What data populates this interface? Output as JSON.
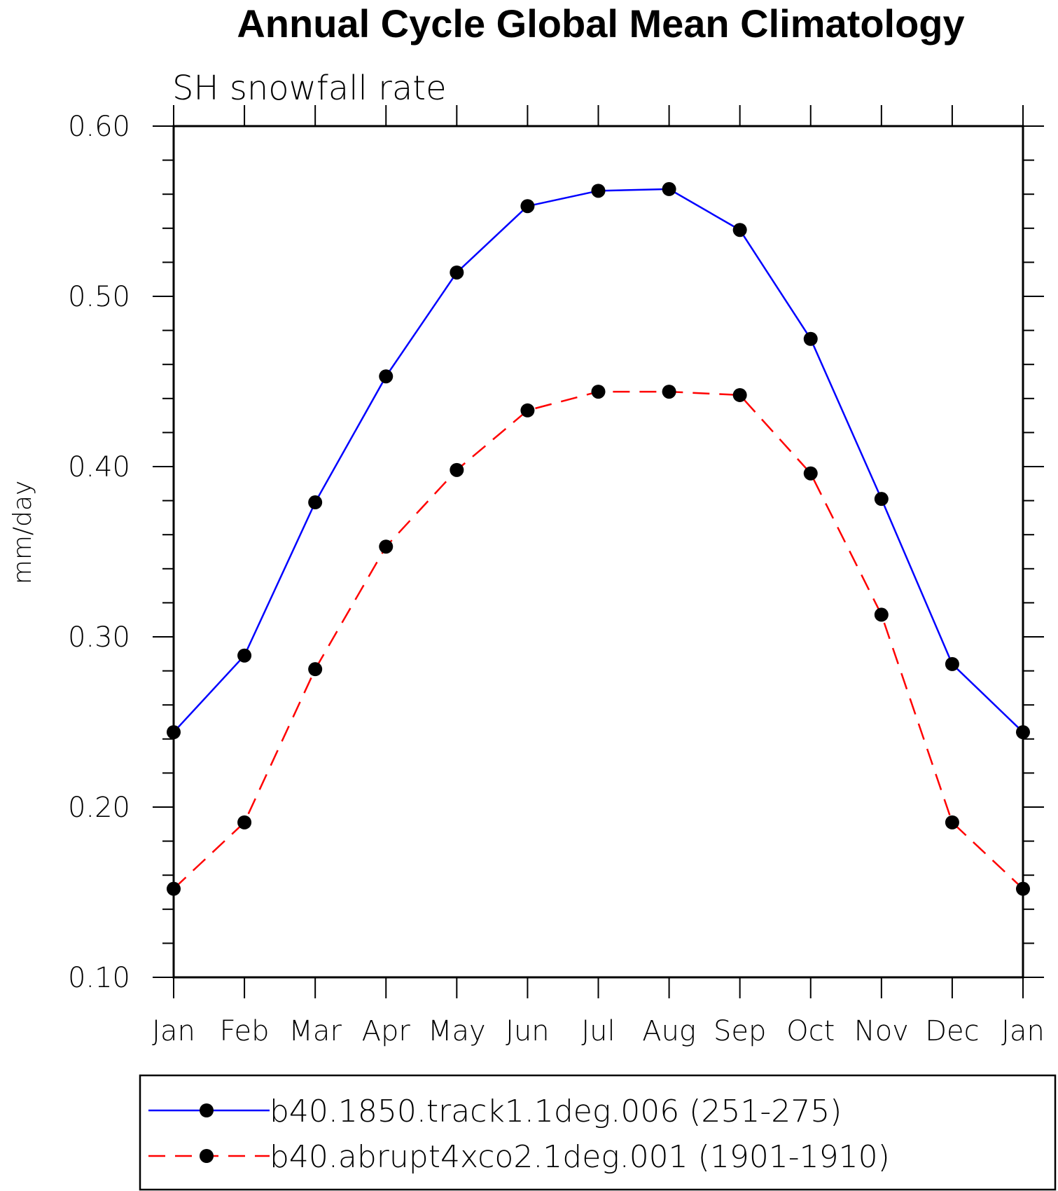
{
  "chart_data": {
    "type": "line",
    "title": "Annual Cycle Global Mean Climatology",
    "subtitle": "SH snowfall rate",
    "xlabel": "",
    "ylabel": "mm/day",
    "categories": [
      "Jan",
      "Feb",
      "Mar",
      "Apr",
      "May",
      "Jun",
      "Jul",
      "Aug",
      "Sep",
      "Oct",
      "Nov",
      "Dec",
      "Jan"
    ],
    "ylim": [
      0.1,
      0.6
    ],
    "yticks": [
      "0.10",
      "0.20",
      "0.30",
      "0.40",
      "0.50",
      "0.60"
    ],
    "grid": false,
    "legend_position": "bottom",
    "series": [
      {
        "name": "b40.1850.track1.1deg.006 (251-275)",
        "color": "#0000ff",
        "dash": "solid",
        "values": [
          0.244,
          0.289,
          0.379,
          0.453,
          0.514,
          0.553,
          0.562,
          0.563,
          0.539,
          0.475,
          0.381,
          0.284,
          0.244
        ]
      },
      {
        "name": "b40.abrupt4xco2.1deg.001 (1901-1910)",
        "color": "#ff0000",
        "dash": "dashed",
        "values": [
          0.152,
          0.191,
          0.281,
          0.353,
          0.398,
          0.433,
          0.444,
          0.444,
          0.442,
          0.396,
          0.313,
          0.191,
          0.152
        ]
      }
    ]
  }
}
